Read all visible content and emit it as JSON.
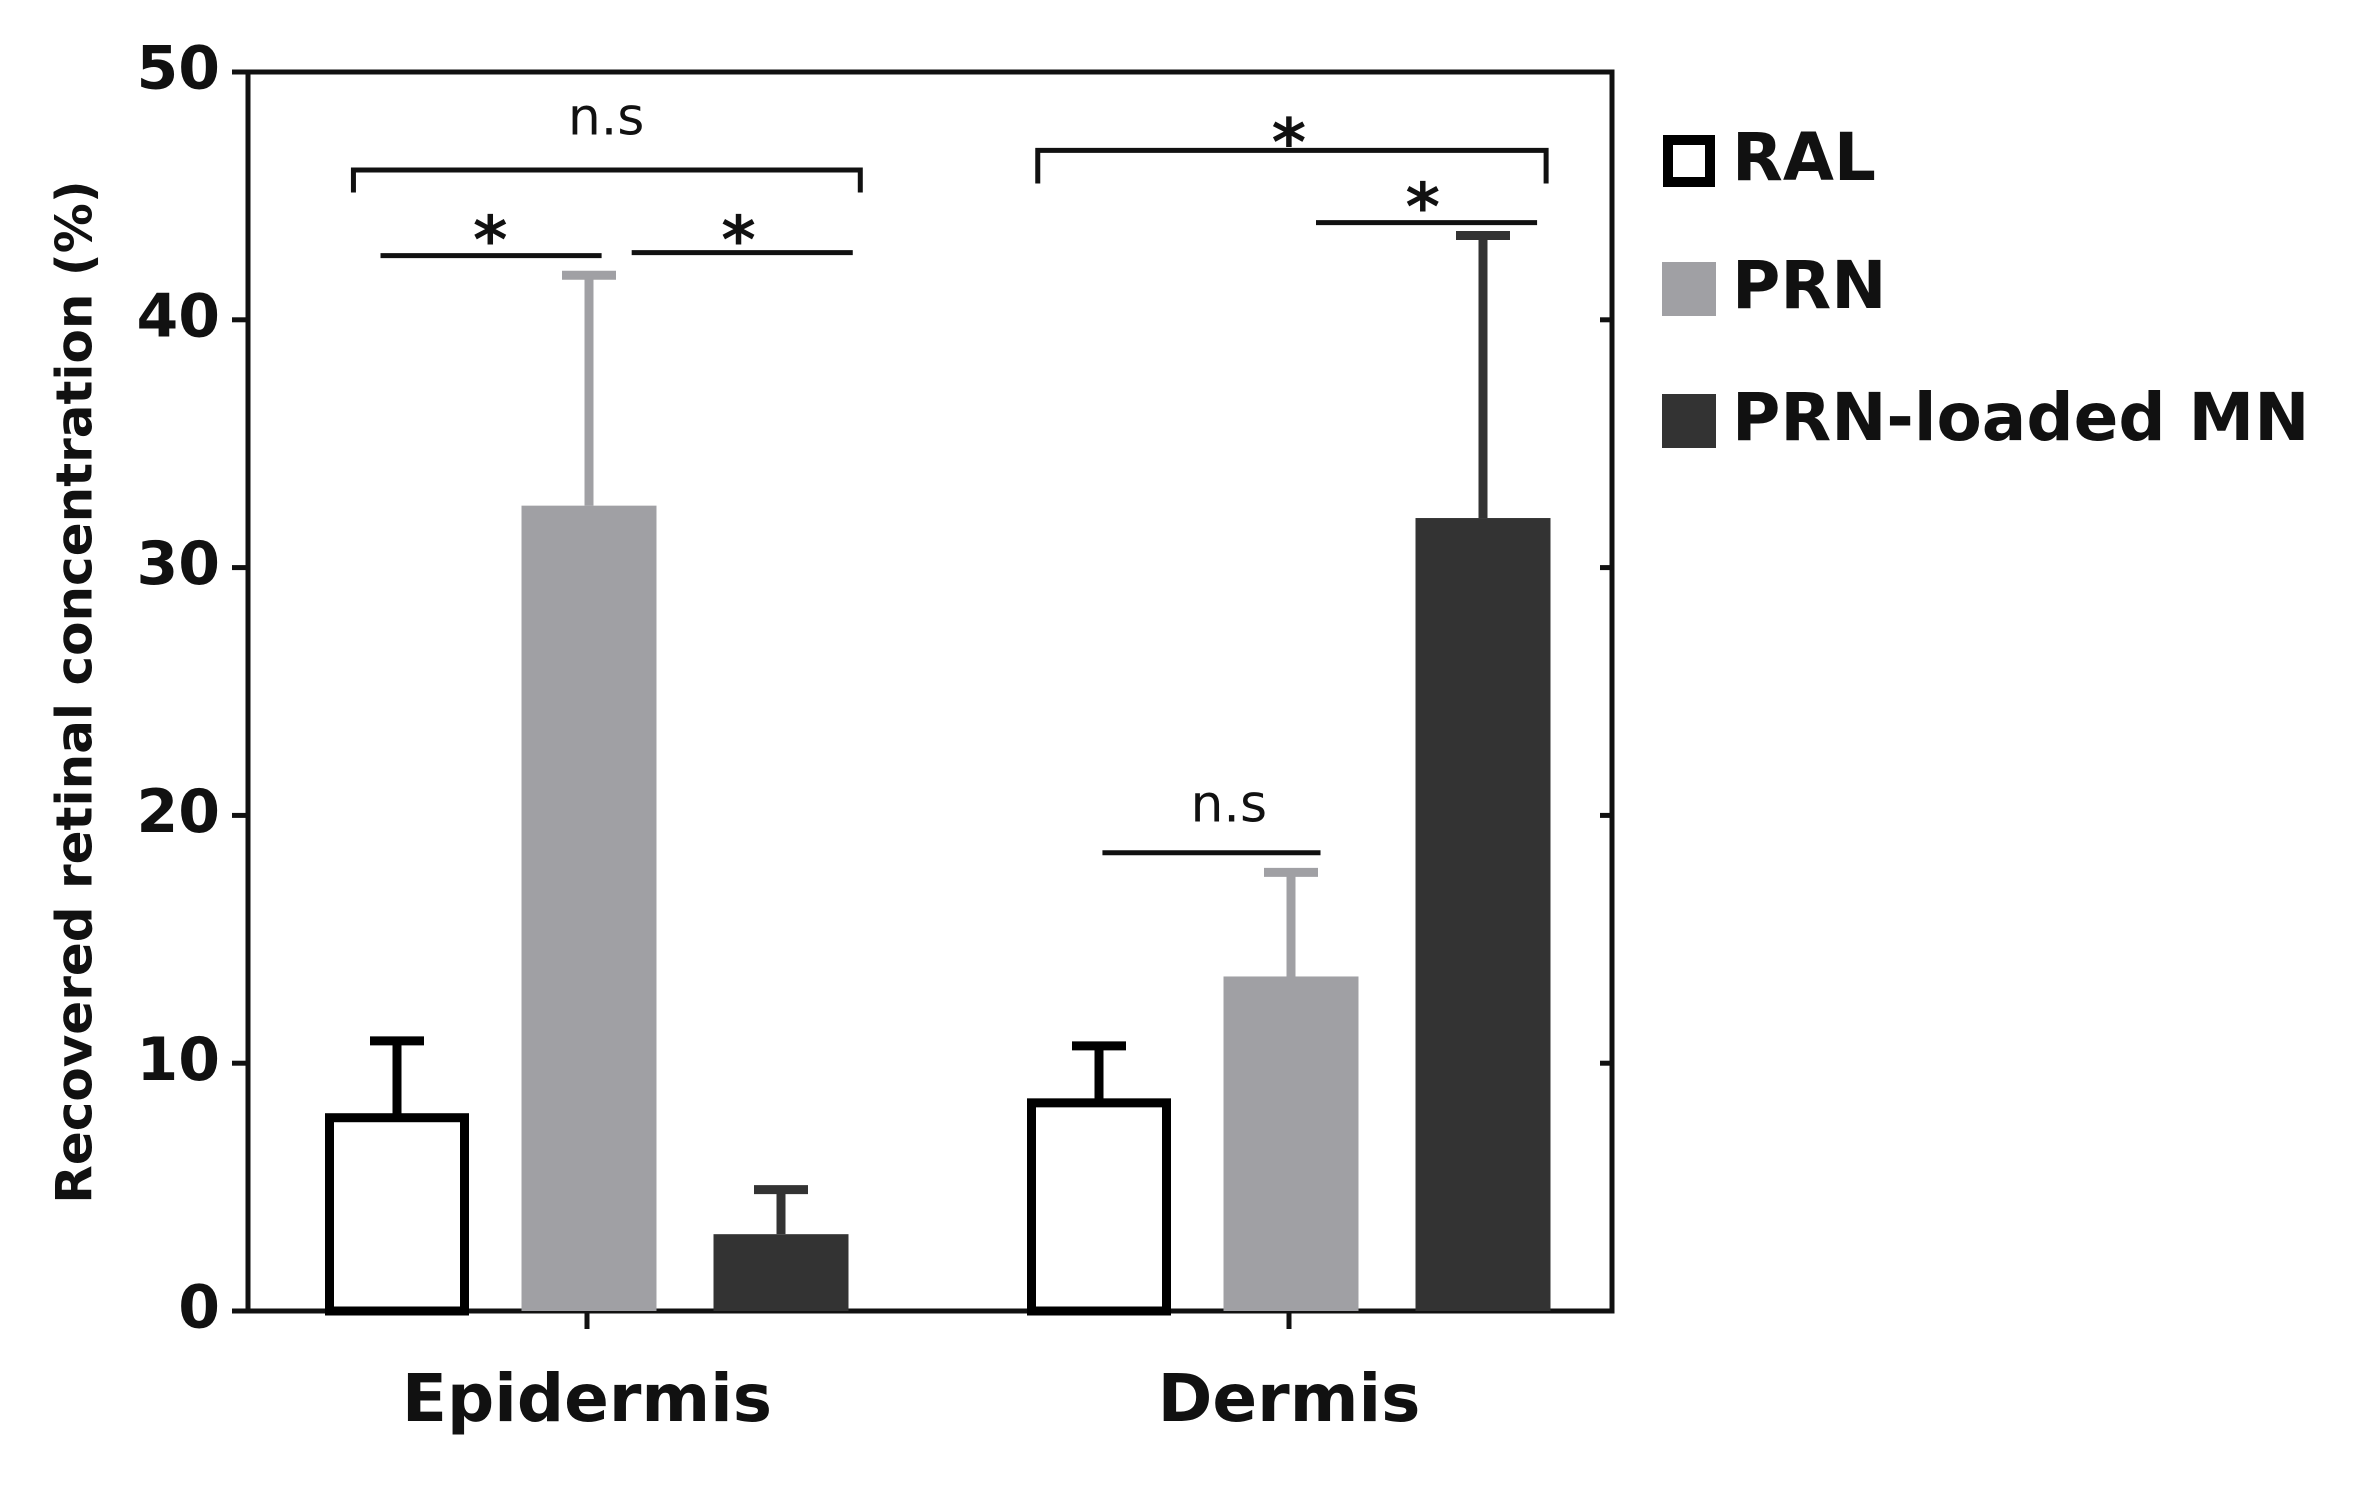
{
  "chart_data": {
    "type": "bar",
    "y_label": "Recovered  retinal concentration  (%)",
    "categories": [
      "Epidermis",
      "Dermis"
    ],
    "series": [
      {
        "name": "RAL",
        "color": "#ffffff",
        "values": [
          7.8,
          8.4
        ],
        "errors": [
          3.1,
          2.3
        ]
      },
      {
        "name": "PRN",
        "color": "#a0a0a4",
        "values": [
          32.5,
          13.5
        ],
        "errors": [
          9.3,
          4.2
        ]
      },
      {
        "name": "PRN-loaded MN",
        "color": "#333333",
        "values": [
          3.1,
          32
        ],
        "errors": [
          1.8,
          11.4
        ]
      }
    ],
    "ylim": [
      0,
      50
    ],
    "yticks": [
      0,
      10,
      20,
      30,
      40,
      50
    ],
    "annotations": [
      "n.s",
      "*",
      "*",
      "*",
      "*",
      "n.s"
    ]
  }
}
